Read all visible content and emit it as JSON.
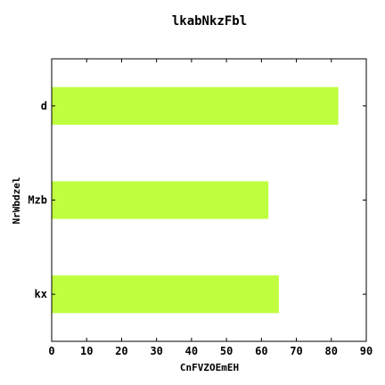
{
  "chart_data": {
    "type": "bar",
    "orientation": "horizontal",
    "title": "lkabNkzFbl",
    "xlabel": "CnFVZOEmEH",
    "ylabel": "NrWbdzel",
    "categories": [
      "kx",
      "Mzb",
      "d"
    ],
    "values": [
      65,
      62,
      82
    ],
    "xlim": [
      0,
      90
    ],
    "xticks": [
      0,
      10,
      20,
      30,
      40,
      50,
      60,
      70,
      80,
      90
    ],
    "grid": false,
    "bar_color": "#bfff40"
  }
}
